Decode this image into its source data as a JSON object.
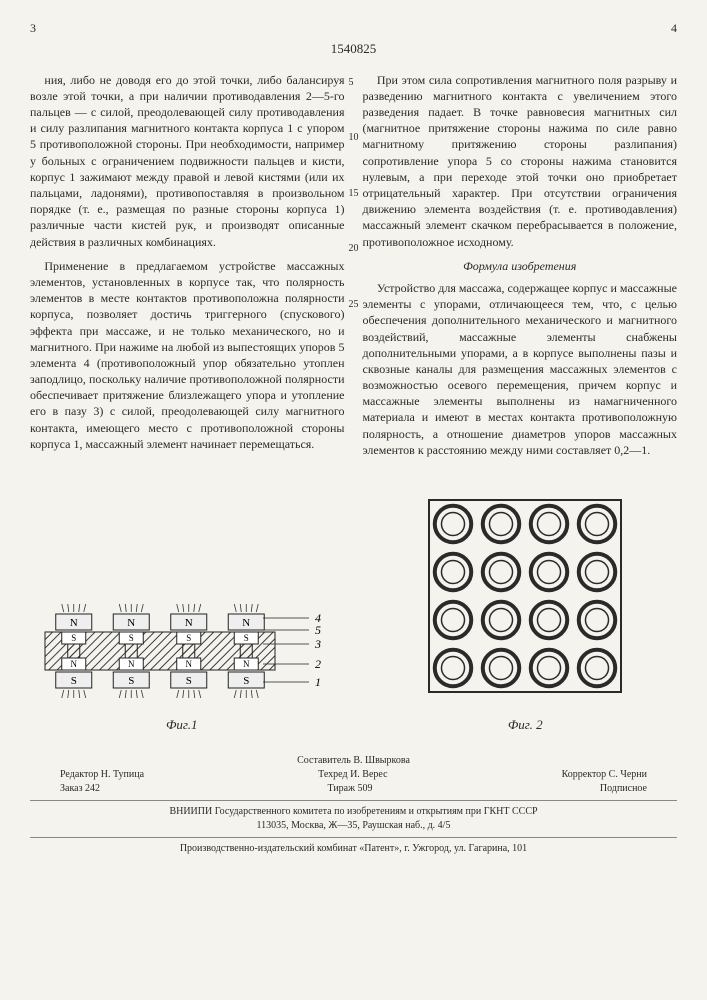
{
  "page_left": "3",
  "page_right": "4",
  "doc_number": "1540825",
  "line_markers": [
    "5",
    "10",
    "15",
    "20",
    "25"
  ],
  "col_left": {
    "p1": "ния, либо не доводя его до этой точки, либо балансируя возле этой точки, а при наличии противодавления 2—5-го пальцев — с силой, преодолевающей силу противодавления и силу разлипания магнитного контакта корпуса 1 с упором 5 противоположной стороны. При необходимости, например у больных с ограничением подвижности пальцев и кисти, корпус 1 зажимают между правой и левой кистями (или их пальцами, ладонями), противопоставляя в произвольном порядке (т. е., размещая по разные стороны корпуса 1) различные части кистей рук, и производят описанные действия в различных комбинациях.",
    "p2": "Применение в предлагаемом устройстве массажных элементов, установленных в корпусе так, что полярность элементов в месте контактов противоположна полярности корпуса, позволяет достичь триггерного (спускового) эффекта при массаже, и не только механического, но и магнитного. При нажиме на любой из выпестоящих упоров 5 элемента 4 (противоположный упор обязательно утоплен заподлицо, поскольку наличие противоположной полярности обеспечивает притяжение близлежащего упора и утопление его в пазу 3) с силой, преодолевающей силу магнитного контакта, имеющего место с противоположной стороны корпуса 1, массажный элемент начинает перемещаться."
  },
  "col_right": {
    "p1": "При этом сила сопротивления магнитного поля разрыву и разведению магнитного контакта с увеличением этого разведения падает. В точке равновесия магнитных сил (магнитное притяжение стороны нажима по силе равно магнитному притяжению стороны разлипания) сопротивление упора 5 со стороны нажима становится нулевым, а при переходе этой точки оно приобретает отрицательный характер. При отсутствии ограничения движению элемента воздействия (т. е. противодавления) массажный элемент скачком перебрасывается в положение, противоположное исходному.",
    "claim_title": "Формула изобретения",
    "p2": "Устройство для массажа, содержащее корпус и массажные элементы с упорами, отличающееся тем, что, с целью обеспечения дополнительного механического и магнитного воздействий, массажные элементы снабжены дополнительными упорами, а в корпусе выполнены пазы и сквозные каналы для размещения массажных элементов с возможностью осевого перемещения, причем корпус и массажные элементы выполнены из намагниченного материала и имеют в местах контакта противоположную полярность, а отношение диаметров упоров массажных элементов к расстоянию между ними составляет 0,2—1."
  },
  "fig1": {
    "label": "Фиг.1",
    "lead_labels": [
      "4",
      "5",
      "3",
      "2",
      "1"
    ],
    "cols": 4,
    "colors": {
      "hatch": "#3a3a3a",
      "n_fill": "#efefef",
      "s_fill": "#efefef",
      "body_hatch": "#555"
    }
  },
  "fig2": {
    "label": "Фиг. 2",
    "rows": 4,
    "cols": 4,
    "ring_outer": "#2a2a2a",
    "ring_inner": "#f5f3ee",
    "border": "#2a2a2a"
  },
  "footer": {
    "compiler": "Составитель В. Швыркова",
    "editor": "Редактор Н. Тупица",
    "tech": "Техред И. Верес",
    "corrector": "Корректор С. Черни",
    "order": "Заказ 242",
    "tirage": "Тираж 509",
    "subscription": "Подписное",
    "org": "ВНИИПИ Государственного комитета по изобретениям и открытиям при ГКНТ СССР",
    "address": "113035, Москва, Ж—35, Раушская наб., д. 4/5",
    "printer": "Производственно-издательский комбинат «Патент», г. Ужгород, ул. Гагарина, 101"
  }
}
